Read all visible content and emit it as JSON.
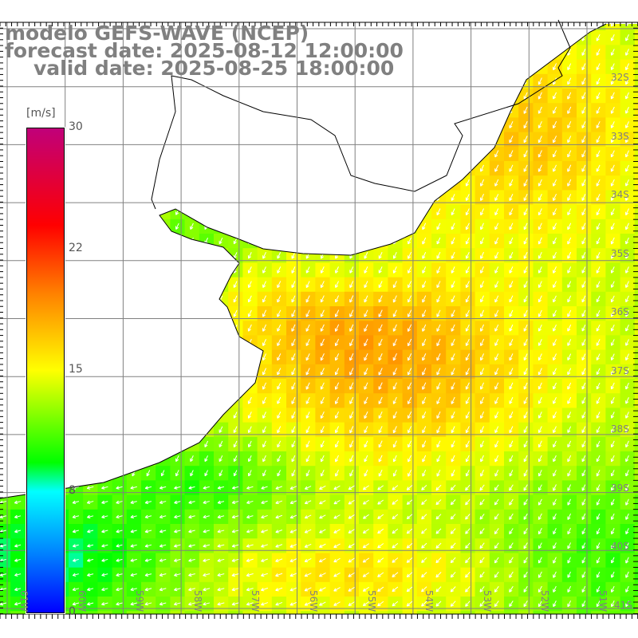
{
  "title": {
    "model": "modelo GEFS-WAVE (NCEP)",
    "forecast": "forecast date: 2025-08-12 12:00:00",
    "valid": "valid date: 2025-08-25 18:00:00"
  },
  "colorbar": {
    "units": "[m/s]",
    "ticks": [
      "30",
      "22",
      "15",
      "8",
      "0"
    ],
    "range": [
      0,
      30
    ]
  },
  "lat_labels": [
    "32S",
    "33S",
    "34S",
    "35S",
    "36S",
    "37S",
    "38S",
    "39S",
    "40S",
    "41S"
  ],
  "lon_labels": [
    "61W",
    "60W",
    "59W",
    "58W",
    "57W",
    "56W",
    "55W",
    "54W",
    "53W",
    "52W",
    "51W"
  ],
  "colors": {
    "land": "#ffffff",
    "grid": "#808080",
    "coast": "#000000",
    "arrow": "#ffffff"
  }
}
